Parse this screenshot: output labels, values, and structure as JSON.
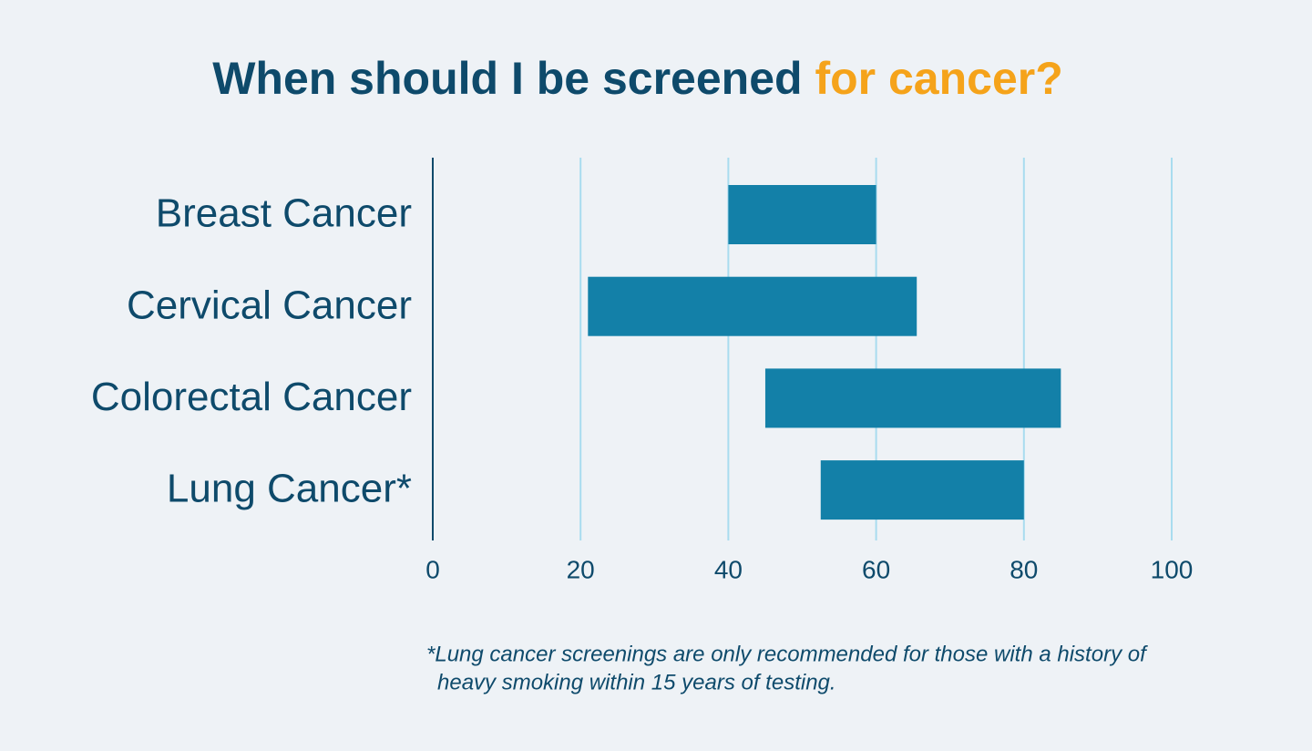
{
  "chart_data": {
    "type": "range-bar",
    "title": {
      "text": "When should I be screened",
      "highlight": "for cancer?"
    },
    "categories": [
      "Breast Cancer",
      "Cervical Cancer",
      "Colorectal Cancer",
      "Lung Cancer*"
    ],
    "start": [
      40,
      21,
      45,
      52.5
    ],
    "end": [
      60,
      65.5,
      85,
      80
    ],
    "color": "#1380a8",
    "xlim": [
      0,
      100
    ],
    "xticks": [
      0,
      20,
      40,
      60,
      80,
      100
    ],
    "grid": true,
    "footnote": [
      "*Lung cancer screenings are only recommended for those with a history of",
      "heavy smoking within 15 years of testing."
    ]
  }
}
